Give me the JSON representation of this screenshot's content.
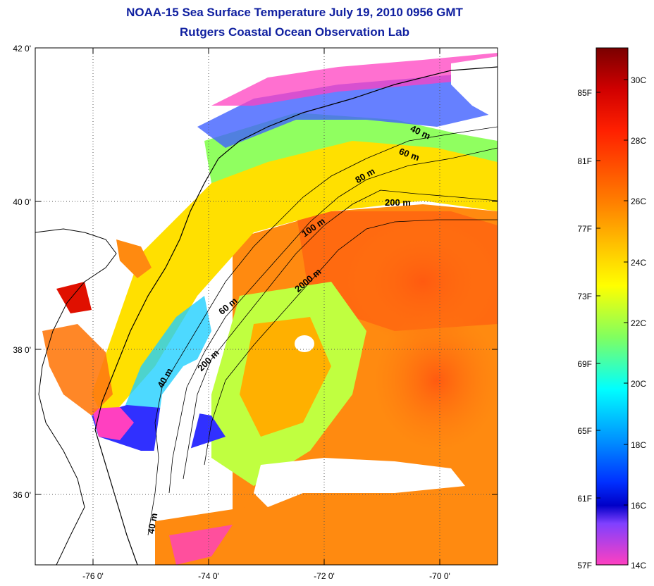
{
  "title_line1": "NOAA-15 Sea Surface Temperature July 19, 2010 0956 GMT",
  "title_line2": "Rutgers Coastal Ocean Observation Lab",
  "longitude_ticks": [
    "-76 0'",
    "-74 0'",
    "-72 0'",
    "-70 0'"
  ],
  "latitude_ticks": [
    "42 0'",
    "40 0'",
    "38 0'",
    "36 0'"
  ],
  "depth_contour_labels": [
    "40 m",
    "60 m",
    "80 m",
    "200 m",
    "100 m",
    "2000 m",
    "60 m",
    "200 m",
    "40 m",
    "40 m"
  ],
  "colorbar": {
    "fahrenheit_labels": [
      "85F",
      "81F",
      "77F",
      "73F",
      "69F",
      "65F",
      "61F",
      "57F"
    ],
    "celsius_labels": [
      "30C",
      "28C",
      "26C",
      "24C",
      "22C",
      "20C",
      "18C",
      "16C",
      "14C"
    ],
    "colors": {
      "top": "#7a0000",
      "red": "#ff0000",
      "orange": "#ff8000",
      "yellow": "#ffff00",
      "green": "#80ff60",
      "cyan": "#00ffff",
      "blue": "#0040ff",
      "deep_blue": "#0000c0",
      "purple": "#8040ff",
      "magenta": "#ff40c0"
    }
  }
}
